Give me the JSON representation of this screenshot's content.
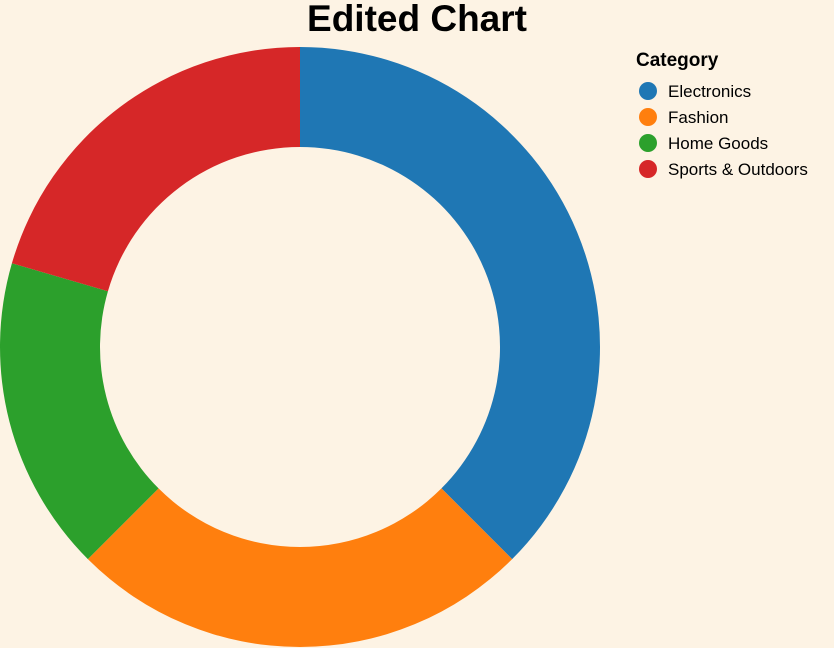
{
  "chart_data": {
    "type": "pie",
    "variant": "donut",
    "title": "Edited Chart",
    "legend": {
      "title": "Category",
      "placement": "top-right"
    },
    "categories": [
      "Electronics",
      "Fashion",
      "Home Goods",
      "Sports & Outdoors"
    ],
    "values": [
      37.5,
      25.0,
      17.0,
      20.5
    ],
    "colors": [
      "#1f77b4",
      "#ff7f0e",
      "#2ca02c",
      "#d62728"
    ]
  }
}
